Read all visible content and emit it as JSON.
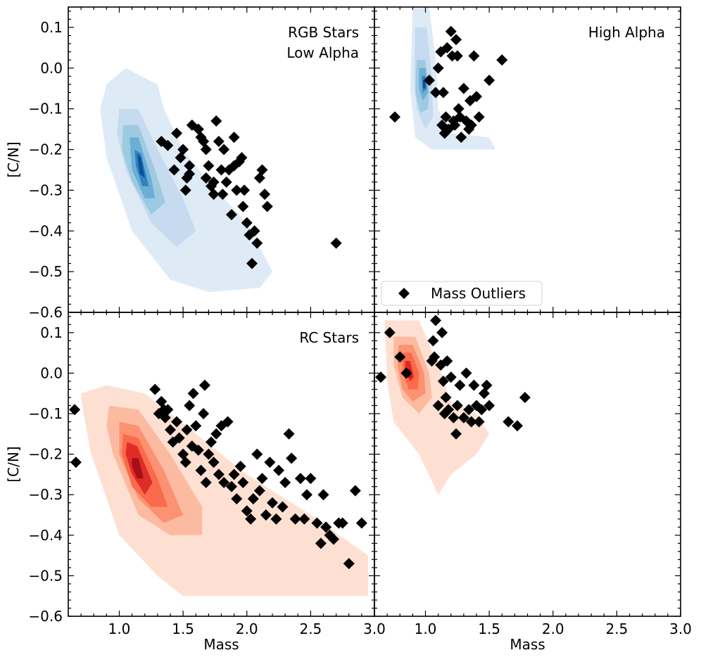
{
  "chart_data": [
    {
      "type": "scatter",
      "panel": "top-left",
      "annotation": [
        "RGB Stars",
        "Low Alpha"
      ],
      "xlabel": "",
      "ylabel": "[C/N]",
      "xlim": [
        0.6,
        3.0
      ],
      "ylim": [
        -0.6,
        0.15
      ],
      "xticks": [],
      "yticks": [
        0.1,
        0.0,
        -0.1,
        -0.2,
        -0.3,
        -0.4,
        -0.5,
        -0.6
      ],
      "ytick_labels": [
        "0.1",
        "0.0",
        "−0.1",
        "−0.2",
        "−0.3",
        "−0.4",
        "−0.5",
        "−0.6"
      ],
      "density_color": "#2171b5",
      "density_shades": [
        "#deebf7",
        "#c6dbef",
        "#9ecae1",
        "#6baed6",
        "#3182bd",
        "#08519c"
      ],
      "density_contours": [
        [
          [
            0.9,
            -0.04
          ],
          [
            1.05,
            -0.0
          ],
          [
            1.3,
            -0.04
          ],
          [
            1.35,
            -0.1
          ],
          [
            1.5,
            -0.2
          ],
          [
            1.7,
            -0.28
          ],
          [
            2.0,
            -0.38
          ],
          [
            2.2,
            -0.5
          ],
          [
            2.1,
            -0.54
          ],
          [
            1.7,
            -0.55
          ],
          [
            1.4,
            -0.52
          ],
          [
            1.1,
            -0.4
          ],
          [
            0.9,
            -0.22
          ],
          [
            0.85,
            -0.1
          ]
        ],
        [
          [
            1.0,
            -0.1
          ],
          [
            1.15,
            -0.1
          ],
          [
            1.3,
            -0.2
          ],
          [
            1.5,
            -0.32
          ],
          [
            1.6,
            -0.4
          ],
          [
            1.45,
            -0.44
          ],
          [
            1.25,
            -0.38
          ],
          [
            1.05,
            -0.25
          ],
          [
            0.98,
            -0.16
          ]
        ],
        [
          [
            1.03,
            -0.14
          ],
          [
            1.15,
            -0.14
          ],
          [
            1.28,
            -0.25
          ],
          [
            1.36,
            -0.33
          ],
          [
            1.25,
            -0.36
          ],
          [
            1.1,
            -0.28
          ],
          [
            1.02,
            -0.2
          ]
        ],
        [
          [
            1.08,
            -0.17
          ],
          [
            1.15,
            -0.17
          ],
          [
            1.25,
            -0.27
          ],
          [
            1.28,
            -0.32
          ],
          [
            1.2,
            -0.32
          ],
          [
            1.1,
            -0.25
          ]
        ],
        [
          [
            1.12,
            -0.2
          ],
          [
            1.17,
            -0.21
          ],
          [
            1.23,
            -0.29
          ],
          [
            1.18,
            -0.29
          ],
          [
            1.13,
            -0.24
          ]
        ],
        [
          [
            1.14,
            -0.21
          ],
          [
            1.17,
            -0.22
          ],
          [
            1.2,
            -0.27
          ],
          [
            1.16,
            -0.26
          ]
        ]
      ],
      "outliers_x": [
        1.33,
        1.38,
        1.43,
        1.45,
        1.48,
        1.5,
        1.52,
        1.53,
        1.55,
        1.55,
        1.57,
        1.62,
        1.64,
        1.66,
        1.68,
        1.68,
        1.7,
        1.72,
        1.74,
        1.74,
        1.76,
        1.78,
        1.8,
        1.81,
        1.82,
        1.84,
        1.86,
        1.88,
        1.9,
        1.9,
        1.92,
        1.94,
        1.96,
        1.97,
        1.98,
        2.0,
        2.02,
        2.04,
        2.06,
        2.08,
        2.1,
        2.12,
        2.14,
        2.16,
        2.7
      ],
      "outliers_y": [
        -0.18,
        -0.19,
        -0.25,
        -0.16,
        -0.22,
        -0.2,
        -0.3,
        -0.27,
        -0.24,
        -0.26,
        -0.14,
        -0.15,
        -0.17,
        -0.18,
        -0.2,
        -0.27,
        -0.24,
        -0.29,
        -0.31,
        -0.28,
        -0.13,
        -0.18,
        -0.25,
        -0.31,
        -0.2,
        -0.28,
        -0.25,
        -0.36,
        -0.17,
        -0.24,
        -0.3,
        -0.23,
        -0.22,
        -0.34,
        -0.3,
        -0.38,
        -0.41,
        -0.48,
        -0.4,
        -0.43,
        -0.27,
        -0.25,
        -0.31,
        -0.34,
        -0.43
      ]
    },
    {
      "type": "scatter",
      "panel": "top-right",
      "annotation": [
        "High Alpha"
      ],
      "xlabel": "",
      "ylabel": "",
      "xlim": [
        0.6,
        3.0
      ],
      "ylim": [
        -0.6,
        0.15
      ],
      "legend": {
        "label": "Mass Outliers",
        "position": "lower-left"
      },
      "density_color": "#2171b5",
      "density_shades": [
        "#deebf7",
        "#c6dbef",
        "#9ecae1",
        "#6baed6",
        "#3182bd",
        "#08519c"
      ],
      "density_contours": [
        [
          [
            0.9,
            0.15
          ],
          [
            1.03,
            0.15
          ],
          [
            1.08,
            0.02
          ],
          [
            1.1,
            -0.1
          ],
          [
            1.2,
            -0.16
          ],
          [
            1.5,
            -0.17
          ],
          [
            1.55,
            -0.2
          ],
          [
            1.05,
            -0.2
          ],
          [
            0.92,
            -0.17
          ],
          [
            0.88,
            -0.05
          ]
        ],
        [
          [
            0.92,
            0.1
          ],
          [
            1.01,
            0.1
          ],
          [
            1.05,
            -0.02
          ],
          [
            1.06,
            -0.12
          ],
          [
            1.0,
            -0.15
          ],
          [
            0.93,
            -0.1
          ],
          [
            0.91,
            -0.02
          ]
        ],
        [
          [
            0.93,
            0.02
          ],
          [
            1.0,
            0.02
          ],
          [
            1.03,
            -0.06
          ],
          [
            1.02,
            -0.1
          ],
          [
            0.96,
            -0.11
          ],
          [
            0.92,
            -0.06
          ]
        ],
        [
          [
            0.95,
            -0.0
          ],
          [
            1.0,
            -0.0
          ],
          [
            1.02,
            -0.06
          ],
          [
            0.98,
            -0.08
          ],
          [
            0.95,
            -0.05
          ]
        ],
        [
          [
            0.97,
            -0.02
          ],
          [
            1.0,
            -0.02
          ],
          [
            1.01,
            -0.05
          ],
          [
            0.98,
            -0.06
          ]
        ],
        [
          [
            0.98,
            -0.03
          ],
          [
            1.0,
            -0.03
          ],
          [
            1.0,
            -0.05
          ],
          [
            0.98,
            -0.05
          ]
        ]
      ],
      "outliers_x": [
        0.76,
        1.03,
        1.08,
        1.1,
        1.12,
        1.13,
        1.14,
        1.15,
        1.16,
        1.17,
        1.18,
        1.2,
        1.21,
        1.22,
        1.23,
        1.24,
        1.25,
        1.26,
        1.27,
        1.28,
        1.3,
        1.32,
        1.34,
        1.35,
        1.36,
        1.38,
        1.4,
        1.42,
        1.5,
        1.6
      ],
      "outliers_y": [
        -0.12,
        -0.03,
        -0.06,
        0.0,
        0.04,
        -0.14,
        -0.06,
        -0.16,
        -0.12,
        0.05,
        -0.15,
        0.09,
        0.03,
        -0.13,
        -0.14,
        0.07,
        0.03,
        -0.1,
        -0.12,
        -0.17,
        -0.05,
        -0.13,
        -0.15,
        -0.08,
        -0.14,
        0.03,
        -0.07,
        -0.12,
        -0.03,
        0.02
      ]
    },
    {
      "type": "scatter",
      "panel": "bottom-left",
      "annotation": [
        "RC Stars"
      ],
      "xlabel": "Mass",
      "ylabel": "[C/N]",
      "xlim": [
        0.6,
        3.0
      ],
      "ylim": [
        -0.6,
        0.15
      ],
      "xticks": [
        1.0,
        1.5,
        2.0,
        2.5,
        3.0
      ],
      "xtick_labels": [
        "1.0",
        "1.5",
        "2.0",
        "2.5",
        "3.0"
      ],
      "yticks": [
        0.1,
        0.0,
        -0.1,
        -0.2,
        -0.3,
        -0.4,
        -0.5,
        -0.6
      ],
      "ytick_labels": [
        "0.1",
        "0.0",
        "−0.1",
        "−0.2",
        "−0.3",
        "−0.4",
        "−0.5",
        "−0.6"
      ],
      "density_color": "#de2d26",
      "density_shades": [
        "#fee0d2",
        "#fcbba1",
        "#fc9272",
        "#fb6a4a",
        "#de2d26",
        "#a50f15"
      ],
      "density_contours": [
        [
          [
            0.7,
            -0.05
          ],
          [
            0.9,
            -0.03
          ],
          [
            1.2,
            -0.05
          ],
          [
            1.6,
            -0.15
          ],
          [
            2.0,
            -0.25
          ],
          [
            2.5,
            -0.35
          ],
          [
            2.95,
            -0.45
          ],
          [
            2.95,
            -0.55
          ],
          [
            2.5,
            -0.55
          ],
          [
            2.0,
            -0.55
          ],
          [
            1.5,
            -0.55
          ],
          [
            1.3,
            -0.5
          ],
          [
            1.0,
            -0.4
          ],
          [
            0.78,
            -0.2
          ],
          [
            0.72,
            -0.1
          ]
        ],
        [
          [
            0.92,
            -0.08
          ],
          [
            1.15,
            -0.09
          ],
          [
            1.4,
            -0.2
          ],
          [
            1.65,
            -0.33
          ],
          [
            1.65,
            -0.4
          ],
          [
            1.4,
            -0.4
          ],
          [
            1.15,
            -0.35
          ],
          [
            0.95,
            -0.2
          ],
          [
            0.9,
            -0.13
          ]
        ],
        [
          [
            1.0,
            -0.12
          ],
          [
            1.15,
            -0.13
          ],
          [
            1.35,
            -0.24
          ],
          [
            1.5,
            -0.35
          ],
          [
            1.35,
            -0.37
          ],
          [
            1.15,
            -0.31
          ],
          [
            1.0,
            -0.2
          ]
        ],
        [
          [
            1.03,
            -0.15
          ],
          [
            1.15,
            -0.16
          ],
          [
            1.3,
            -0.26
          ],
          [
            1.38,
            -0.33
          ],
          [
            1.25,
            -0.33
          ],
          [
            1.1,
            -0.28
          ],
          [
            1.02,
            -0.2
          ]
        ],
        [
          [
            1.06,
            -0.17
          ],
          [
            1.14,
            -0.18
          ],
          [
            1.26,
            -0.27
          ],
          [
            1.2,
            -0.3
          ],
          [
            1.1,
            -0.25
          ],
          [
            1.05,
            -0.2
          ]
        ],
        [
          [
            1.1,
            -0.21
          ],
          [
            1.15,
            -0.21
          ],
          [
            1.19,
            -0.26
          ],
          [
            1.14,
            -0.26
          ],
          [
            1.1,
            -0.23
          ]
        ]
      ],
      "outliers_x": [
        0.65,
        0.66,
        1.28,
        1.31,
        1.33,
        1.35,
        1.36,
        1.38,
        1.4,
        1.42,
        1.45,
        1.47,
        1.5,
        1.52,
        1.53,
        1.55,
        1.57,
        1.58,
        1.6,
        1.62,
        1.64,
        1.66,
        1.67,
        1.68,
        1.7,
        1.72,
        1.74,
        1.76,
        1.78,
        1.8,
        1.82,
        1.85,
        1.88,
        1.9,
        1.92,
        1.95,
        1.97,
        2.0,
        2.03,
        2.05,
        2.08,
        2.1,
        2.12,
        2.15,
        2.18,
        2.2,
        2.23,
        2.25,
        2.28,
        2.3,
        2.33,
        2.35,
        2.38,
        2.42,
        2.45,
        2.47,
        2.5,
        2.55,
        2.58,
        2.6,
        2.62,
        2.65,
        2.68,
        2.72,
        2.75,
        2.8,
        2.85,
        2.9
      ],
      "outliers_y": [
        -0.09,
        -0.22,
        -0.04,
        -0.1,
        -0.07,
        -0.09,
        -0.11,
        -0.09,
        -0.14,
        -0.17,
        -0.12,
        -0.16,
        -0.2,
        -0.22,
        -0.14,
        -0.08,
        -0.18,
        -0.05,
        -0.13,
        -0.19,
        -0.24,
        -0.1,
        -0.03,
        -0.27,
        -0.2,
        -0.17,
        -0.22,
        -0.15,
        -0.25,
        -0.13,
        -0.27,
        -0.12,
        -0.28,
        -0.25,
        -0.31,
        -0.23,
        -0.27,
        -0.34,
        -0.36,
        -0.31,
        -0.2,
        -0.29,
        -0.26,
        -0.35,
        -0.22,
        -0.32,
        -0.36,
        -0.24,
        -0.33,
        -0.27,
        -0.15,
        -0.21,
        -0.36,
        -0.26,
        -0.36,
        -0.3,
        -0.26,
        -0.37,
        -0.42,
        -0.3,
        -0.38,
        -0.4,
        -0.41,
        -0.37,
        -0.37,
        -0.47,
        -0.29,
        -0.37
      ]
    },
    {
      "type": "scatter",
      "panel": "bottom-right",
      "annotation": [],
      "xlabel": "Mass",
      "ylabel": "",
      "xlim": [
        0.6,
        3.0
      ],
      "ylim": [
        -0.6,
        0.15
      ],
      "xticks": [
        1.0,
        1.5,
        2.0,
        2.5,
        3.0
      ],
      "xtick_labels": [
        "1.0",
        "1.5",
        "2.0",
        "2.5",
        "3.0"
      ],
      "density_color": "#de2d26",
      "density_shades": [
        "#fee0d2",
        "#fcbba1",
        "#fc9272",
        "#fb6a4a",
        "#de2d26",
        "#a50f15"
      ],
      "density_contours": [
        [
          [
            0.68,
            0.13
          ],
          [
            0.95,
            0.13
          ],
          [
            1.1,
            0.02
          ],
          [
            1.2,
            -0.07
          ],
          [
            1.4,
            -0.1
          ],
          [
            1.5,
            -0.15
          ],
          [
            1.4,
            -0.2
          ],
          [
            1.2,
            -0.25
          ],
          [
            1.1,
            -0.3
          ],
          [
            0.95,
            -0.2
          ],
          [
            0.75,
            -0.12
          ],
          [
            0.7,
            -0.02
          ]
        ],
        [
          [
            0.75,
            0.09
          ],
          [
            0.92,
            0.09
          ],
          [
            1.03,
            0.0
          ],
          [
            1.05,
            -0.06
          ],
          [
            0.95,
            -0.1
          ],
          [
            0.82,
            -0.06
          ],
          [
            0.75,
            0.02
          ]
        ],
        [
          [
            0.79,
            0.07
          ],
          [
            0.9,
            0.07
          ],
          [
            0.99,
            -0.0
          ],
          [
            1.0,
            -0.05
          ],
          [
            0.9,
            -0.07
          ],
          [
            0.82,
            -0.04
          ],
          [
            0.78,
            0.02
          ]
        ],
        [
          [
            0.82,
            0.05
          ],
          [
            0.89,
            0.05
          ],
          [
            0.95,
            -0.0
          ],
          [
            0.94,
            -0.04
          ],
          [
            0.87,
            -0.04
          ],
          [
            0.82,
            0.0
          ]
        ],
        [
          [
            0.84,
            0.03
          ],
          [
            0.88,
            0.03
          ],
          [
            0.91,
            -0.01
          ],
          [
            0.88,
            -0.02
          ],
          [
            0.84,
            0.0
          ]
        ],
        [
          [
            0.85,
            0.01
          ],
          [
            0.88,
            0.01
          ],
          [
            0.89,
            -0.01
          ],
          [
            0.86,
            -0.01
          ]
        ]
      ],
      "outliers_x": [
        0.65,
        0.72,
        0.8,
        0.85,
        1.05,
        1.06,
        1.07,
        1.08,
        1.1,
        1.12,
        1.13,
        1.14,
        1.15,
        1.16,
        1.17,
        1.18,
        1.2,
        1.22,
        1.24,
        1.25,
        1.27,
        1.3,
        1.32,
        1.34,
        1.36,
        1.38,
        1.4,
        1.42,
        1.44,
        1.46,
        1.48,
        1.5,
        1.65,
        1.72,
        1.78
      ],
      "outliers_y": [
        -0.01,
        0.1,
        0.04,
        -0.0,
        0.03,
        0.08,
        0.04,
        0.13,
        -0.08,
        0.02,
        0.1,
        -0.02,
        -0.1,
        -0.06,
        0.03,
        -0.09,
        -0.01,
        -0.11,
        -0.15,
        -0.08,
        -0.03,
        -0.11,
        -0.0,
        -0.09,
        -0.12,
        -0.03,
        -0.08,
        -0.12,
        -0.09,
        -0.05,
        -0.03,
        -0.08,
        -0.12,
        -0.13,
        -0.06
      ]
    }
  ]
}
